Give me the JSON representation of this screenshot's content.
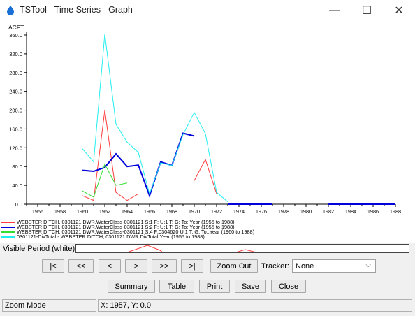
{
  "window": {
    "title": "TSTool - Time Series - Graph",
    "minimize_glyph": "—",
    "maximize_glyph": "☐",
    "close_glyph": "✕",
    "icon": "water-drop-icon"
  },
  "chart_data": {
    "type": "line",
    "ylabel": "ACFT",
    "x_ticks": [
      "1956",
      "1958",
      "1960",
      "1962",
      "1964",
      "1966",
      "1968",
      "1970",
      "1972",
      "1974",
      "1976",
      "1978",
      "1980",
      "1982",
      "1984",
      "1986",
      "1988"
    ],
    "y_ticks": [
      "0.0",
      "40.0",
      "80.0",
      "120.0",
      "160.0",
      "200.0",
      "240.0",
      "280.0",
      "320.0",
      "360.0"
    ],
    "xlim": [
      1955,
      1988
    ],
    "ylim": [
      0,
      360
    ],
    "grid": false,
    "series": [
      {
        "name": "WEBSTER DITCH, 0301121.DWR.WaterClass-0301121 S:1 F: U:1 T: G: To:.Year (1955 to 1988)",
        "color": "#ff3b3b",
        "width": 1,
        "segments": [
          [
            [
              1960,
              18
            ],
            [
              1961,
              8
            ],
            [
              1962,
              200
            ],
            [
              1963,
              25
            ],
            [
              1964,
              8
            ],
            [
              1965,
              22
            ]
          ],
          [
            [
              1970,
              50
            ],
            [
              1971,
              95
            ],
            [
              1972,
              22
            ]
          ]
        ]
      },
      {
        "name": "WEBSTER DITCH, 0301121.DWR.WaterClass-0301121 S:2 F: U:1 T: G: To:.Year (1955 to 1988)",
        "color": "#0000dd",
        "width": 2,
        "segments": [
          [
            [
              1960,
              72
            ],
            [
              1961,
              70
            ],
            [
              1962,
              78
            ],
            [
              1963,
              107
            ],
            [
              1964,
              80
            ],
            [
              1965,
              83
            ],
            [
              1966,
              18
            ],
            [
              1967,
              90
            ],
            [
              1968,
              82
            ],
            [
              1969,
              151
            ],
            [
              1970,
              145
            ]
          ],
          [
            [
              1973,
              0
            ],
            [
              1974,
              0
            ],
            [
              1975,
              0
            ],
            [
              1976,
              0
            ],
            [
              1977,
              0
            ]
          ],
          [
            [
              1982,
              0
            ],
            [
              1983,
              0
            ],
            [
              1984,
              0
            ],
            [
              1985,
              0
            ],
            [
              1986,
              0
            ],
            [
              1987,
              0
            ],
            [
              1988,
              0
            ]
          ]
        ]
      },
      {
        "name": "WEBSTER DITCH, 0301121.DWR.WaterClass-0301121 S:4 F:0304620 U:1 T: G: To:.Year (1960 to 1988)",
        "color": "#33dd33",
        "width": 1,
        "segments": [
          [
            [
              1960,
              28
            ],
            [
              1961,
              15
            ],
            [
              1962,
              85
            ],
            [
              1963,
              40
            ],
            [
              1964,
              45
            ]
          ]
        ]
      },
      {
        "name": "0301121-DivTotal - WEBSTER DITCH, 0301121.DWR.DivTotal.Year (1955 to 1988)",
        "color": "#22eeee",
        "width": 1,
        "segments": [
          [
            [
              1960,
              118
            ],
            [
              1961,
              90
            ],
            [
              1962,
              362
            ],
            [
              1963,
              170
            ],
            [
              1964,
              132
            ],
            [
              1965,
              110
            ],
            [
              1966,
              22
            ],
            [
              1967,
              88
            ],
            [
              1968,
              82
            ],
            [
              1969,
              148
            ],
            [
              1970,
              195
            ],
            [
              1971,
              150
            ],
            [
              1972,
              25
            ],
            [
              1973,
              5
            ]
          ]
        ]
      }
    ]
  },
  "visible_period": {
    "label": "Visible Period (white):"
  },
  "nav": {
    "first": "|<",
    "page_back": "<<",
    "back": "<",
    "forward": ">",
    "page_forward": ">>",
    "last": ">|",
    "zoom_out": "Zoom Out",
    "tracker_label": "Tracker:",
    "tracker_value": "None"
  },
  "actions": {
    "summary": "Summary",
    "table": "Table",
    "print": "Print",
    "save": "Save",
    "close": "Close"
  },
  "status": {
    "mode": "Zoom Mode",
    "coords": "X:  1957,  Y:  0.0"
  }
}
